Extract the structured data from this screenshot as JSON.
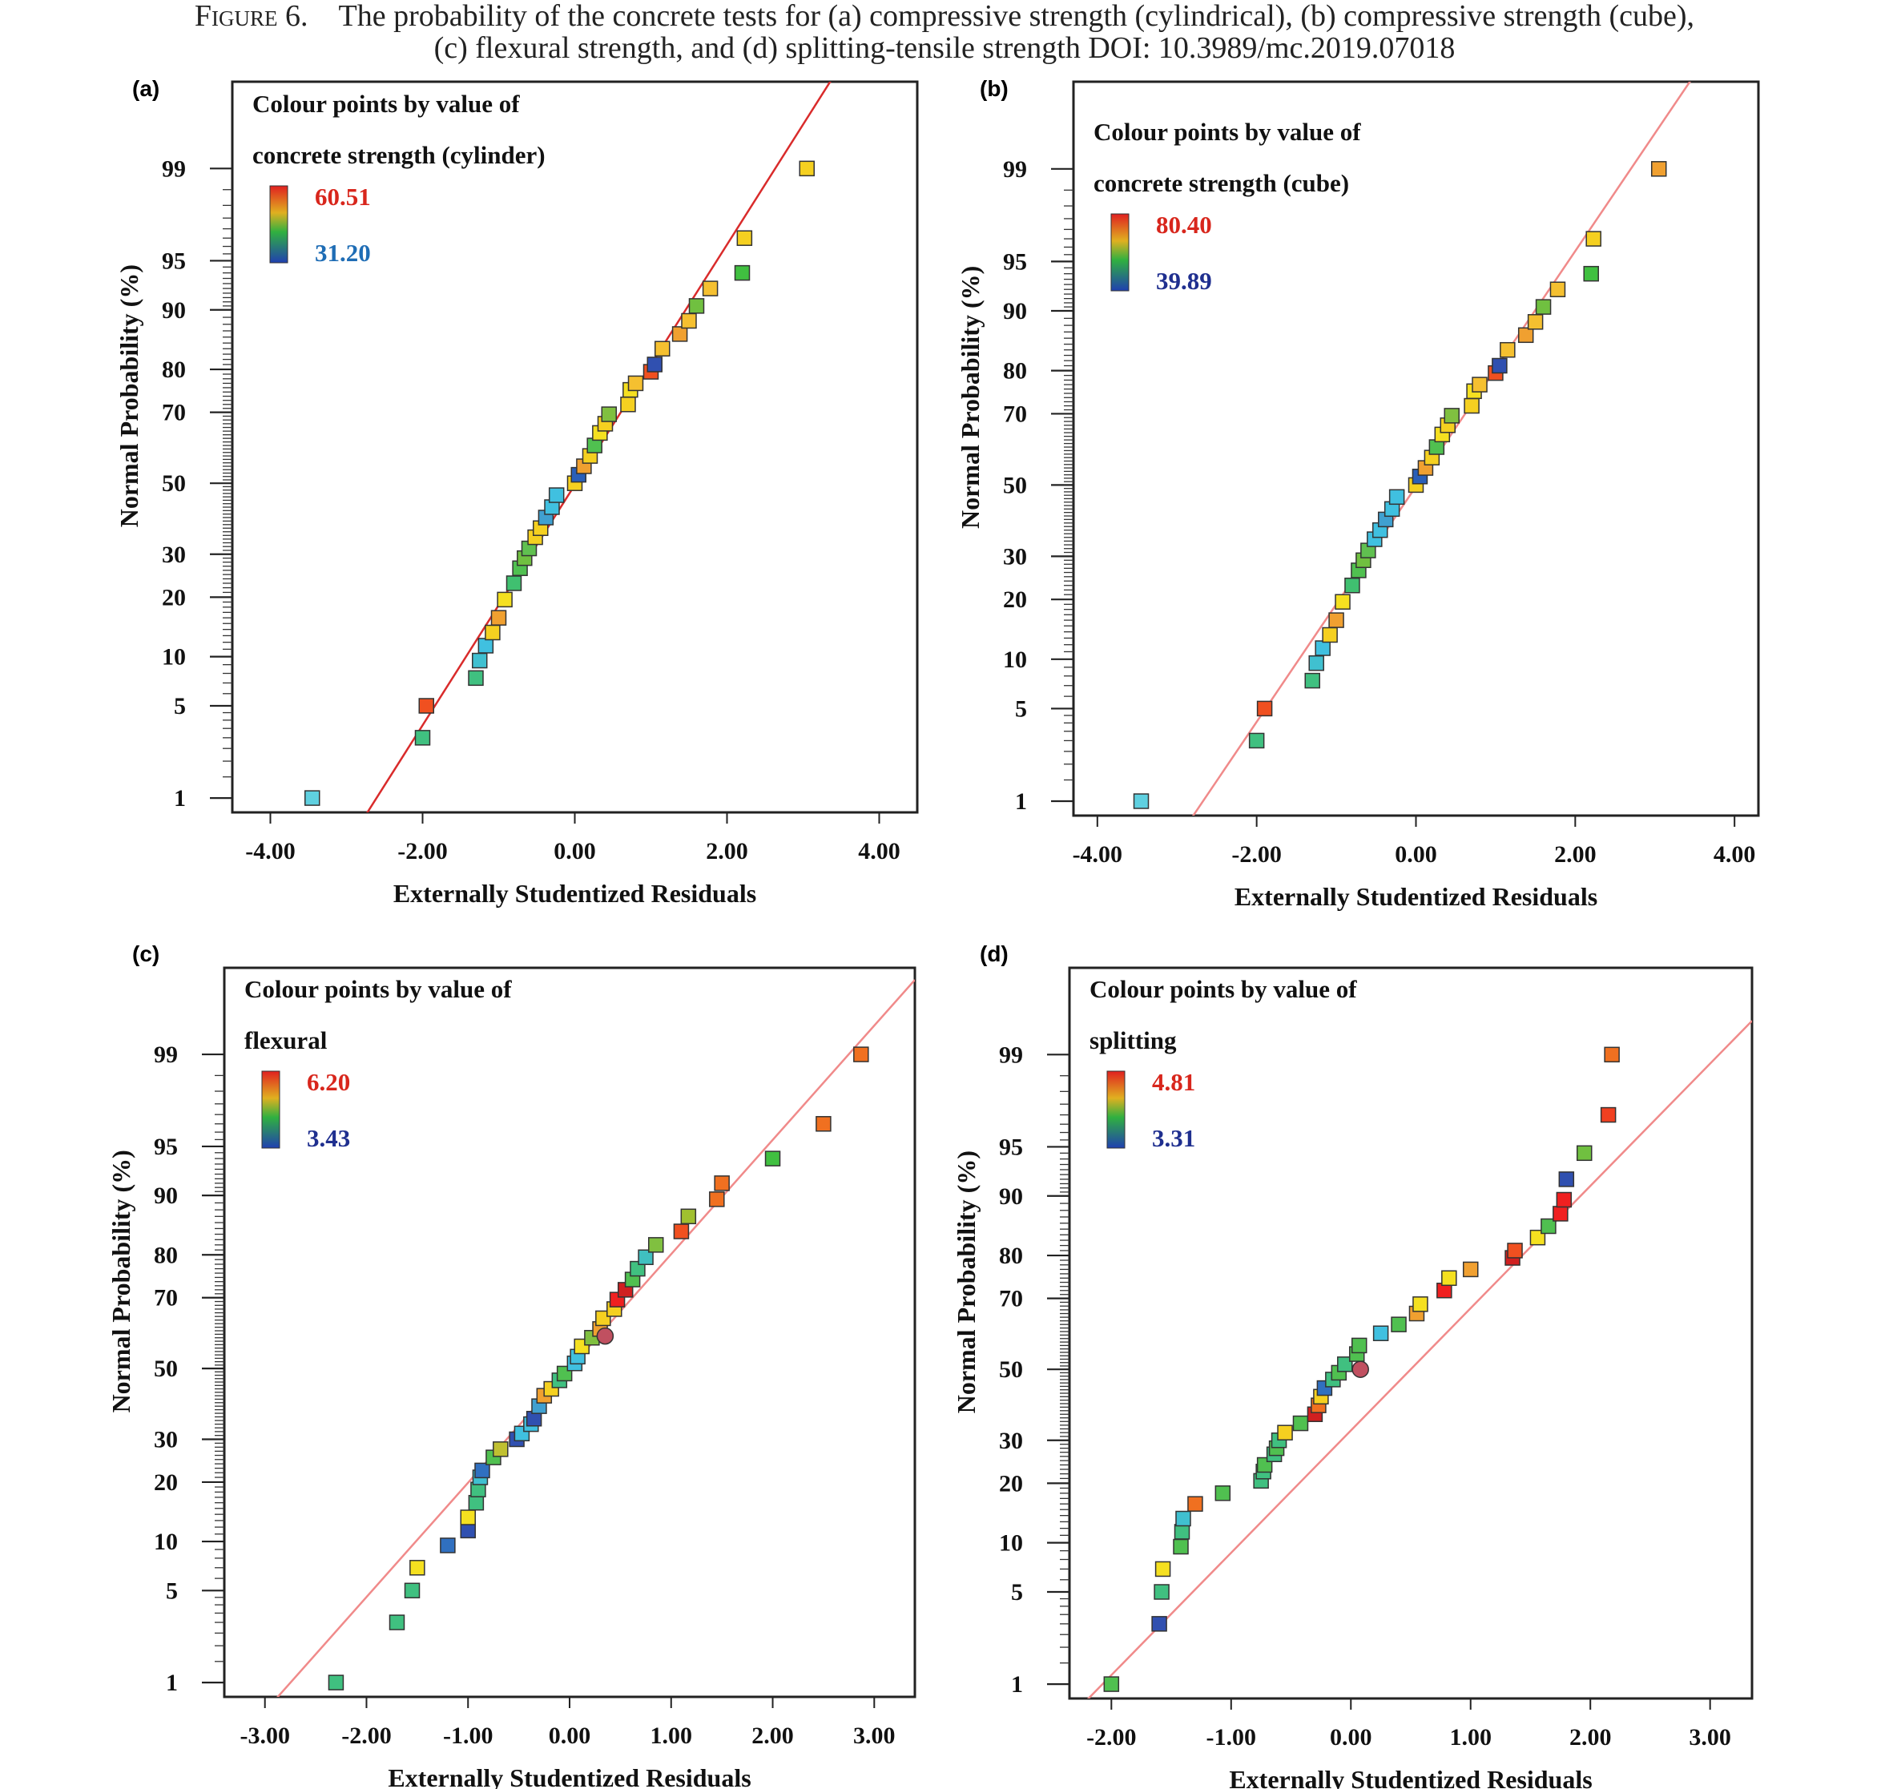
{
  "caption": {
    "figure_label": "Figure 6.",
    "line1": "The probability of the concrete tests for (a) compressive strength (cylindrical), (b) compressive strength (cube),",
    "line2": "(c) flexural strength, and (d) splitting-tensile strength DOI: 10.3989/mc.2019.07018"
  },
  "colors": {
    "frame": "#222222",
    "fit_line_a": "#d92b2b",
    "fit_line_other": "#f08a8a",
    "point_stroke": "#333333",
    "legend_high": "#d8261c",
    "legend_low_a": "#1f6db5",
    "legend_low_other": "#1f2f8f"
  },
  "chart_data": [
    {
      "panel": "(a)",
      "type": "scatter",
      "xlabel": "Externally Studentized Residuals",
      "ylabel": "Normal Probability (%)",
      "legend_title": [
        "Colour points by value of",
        "concrete strength (cylinder)"
      ],
      "legend_high": "60.51",
      "legend_low": "31.20",
      "xlim": [
        -4.5,
        4.5
      ],
      "x_ticks": [
        "-4.00",
        "-2.00",
        "0.00",
        "2.00",
        "4.00"
      ],
      "x_tick_values": [
        -4,
        -2,
        0,
        2,
        4
      ],
      "y_ticks": [
        1,
        5,
        10,
        20,
        30,
        50,
        70,
        80,
        90,
        95,
        99
      ],
      "fit_line": [
        [
          -3.85,
          0.03
        ],
        [
          4.0,
          99.98
        ]
      ],
      "points": [
        [
          -3.45,
          1.0,
          "#5fd0e0"
        ],
        [
          -2.0,
          3.0,
          "#40c080"
        ],
        [
          -1.95,
          5.0,
          "#f05020"
        ],
        [
          -1.3,
          7.5,
          "#40c080"
        ],
        [
          -1.25,
          9.5,
          "#40c0d0"
        ],
        [
          -1.17,
          11.5,
          "#40c0e0"
        ],
        [
          -1.08,
          13.5,
          "#f5d020"
        ],
        [
          -1.0,
          16.0,
          "#f0a030"
        ],
        [
          -0.92,
          19.5,
          "#f5e020"
        ],
        [
          -0.8,
          23.0,
          "#40c070"
        ],
        [
          -0.72,
          26.5,
          "#50c050"
        ],
        [
          -0.66,
          29.0,
          "#70c040"
        ],
        [
          -0.6,
          31.5,
          "#60c050"
        ],
        [
          -0.52,
          34.5,
          "#f5d020"
        ],
        [
          -0.45,
          37.0,
          "#f5d020"
        ],
        [
          -0.38,
          40.0,
          "#40a0d0"
        ],
        [
          -0.3,
          43.0,
          "#40c0e0"
        ],
        [
          -0.24,
          46.5,
          "#40c0e0"
        ],
        [
          0.0,
          50.0,
          "#f5d020"
        ],
        [
          0.05,
          52.5,
          "#2a5fb8"
        ],
        [
          0.12,
          55.0,
          "#f0a030"
        ],
        [
          0.2,
          58.0,
          "#f5d020"
        ],
        [
          0.26,
          61.0,
          "#50c050"
        ],
        [
          0.33,
          64.5,
          "#f5e020"
        ],
        [
          0.4,
          67.0,
          "#f5d020"
        ],
        [
          0.45,
          69.5,
          "#80c040"
        ],
        [
          0.7,
          72.0,
          "#f5d020"
        ],
        [
          0.73,
          75.5,
          "#f5e020"
        ],
        [
          0.8,
          77.0,
          "#f5c030"
        ],
        [
          1.0,
          79.5,
          "#f05020"
        ],
        [
          1.05,
          81.0,
          "#3050b0"
        ],
        [
          1.15,
          84.0,
          "#f5c030"
        ],
        [
          1.38,
          86.5,
          "#f0a030"
        ],
        [
          1.5,
          88.5,
          "#f5c030"
        ],
        [
          1.6,
          90.5,
          "#70c040"
        ],
        [
          1.78,
          92.5,
          "#f5c030"
        ],
        [
          2.2,
          94.0,
          "#40c040"
        ],
        [
          2.23,
          96.5,
          "#f5d020"
        ],
        [
          3.05,
          99.0,
          "#f5d020"
        ]
      ]
    },
    {
      "panel": "(b)",
      "type": "scatter",
      "xlabel": "Externally Studentized Residuals",
      "ylabel": "Normal Probability (%)",
      "legend_title": [
        "Colour points by value of",
        "concrete strength (cube)"
      ],
      "legend_high": "80.40",
      "legend_low": "39.89",
      "xlim": [
        -4.3,
        4.3
      ],
      "x_ticks": [
        "-4.00",
        "-2.00",
        "0.00",
        "2.00",
        "4.00"
      ],
      "x_tick_values": [
        -4,
        -2,
        0,
        2,
        4
      ],
      "y_ticks": [
        1,
        5,
        10,
        20,
        30,
        50,
        70,
        80,
        90,
        95,
        99
      ],
      "fit_line": [
        [
          -3.95,
          0.03
        ],
        [
          4.1,
          99.98
        ]
      ],
      "points": [
        [
          -3.45,
          1.0,
          "#5fd0e0"
        ],
        [
          -2.0,
          3.0,
          "#40c080"
        ],
        [
          -1.9,
          5.0,
          "#f05020"
        ],
        [
          -1.3,
          7.5,
          "#40c080"
        ],
        [
          -1.25,
          9.5,
          "#40c0d0"
        ],
        [
          -1.17,
          11.5,
          "#40c0e0"
        ],
        [
          -1.08,
          13.5,
          "#f5d020"
        ],
        [
          -1.0,
          16.0,
          "#f0a030"
        ],
        [
          -0.92,
          19.5,
          "#f5e020"
        ],
        [
          -0.8,
          23.0,
          "#40c070"
        ],
        [
          -0.72,
          26.5,
          "#50c050"
        ],
        [
          -0.66,
          29.0,
          "#70c040"
        ],
        [
          -0.6,
          31.5,
          "#60c050"
        ],
        [
          -0.52,
          34.5,
          "#40c0e0"
        ],
        [
          -0.45,
          37.0,
          "#40c0e0"
        ],
        [
          -0.38,
          40.0,
          "#40a0d0"
        ],
        [
          -0.3,
          43.0,
          "#40c0e0"
        ],
        [
          -0.24,
          46.5,
          "#40c0e0"
        ],
        [
          0.0,
          50.0,
          "#f5d020"
        ],
        [
          0.05,
          52.5,
          "#2a5fb8"
        ],
        [
          0.12,
          55.0,
          "#f0a030"
        ],
        [
          0.2,
          58.0,
          "#f5d020"
        ],
        [
          0.26,
          61.0,
          "#50c050"
        ],
        [
          0.33,
          64.5,
          "#f5e020"
        ],
        [
          0.4,
          67.0,
          "#f5d020"
        ],
        [
          0.45,
          69.5,
          "#80c040"
        ],
        [
          0.7,
          72.0,
          "#f5d020"
        ],
        [
          0.73,
          75.5,
          "#f5e020"
        ],
        [
          0.8,
          77.0,
          "#f5c030"
        ],
        [
          1.0,
          79.5,
          "#f05020"
        ],
        [
          1.05,
          81.0,
          "#3050b0"
        ],
        [
          1.15,
          84.0,
          "#f5c030"
        ],
        [
          1.38,
          86.5,
          "#f0a030"
        ],
        [
          1.5,
          88.5,
          "#f5c030"
        ],
        [
          1.6,
          90.5,
          "#70c040"
        ],
        [
          1.78,
          92.5,
          "#f5c030"
        ],
        [
          2.2,
          94.0,
          "#40c040"
        ],
        [
          2.23,
          96.5,
          "#f5d020"
        ],
        [
          3.05,
          99.0,
          "#f0a030"
        ]
      ]
    },
    {
      "panel": "(c)",
      "type": "scatter",
      "xlabel": "Externally Studentized Residuals",
      "ylabel": "Normal Probability (%)",
      "legend_title": [
        "Colour points by value of",
        "flexural"
      ],
      "legend_high": "6.20",
      "legend_low": "3.43",
      "xlim": [
        -3.4,
        3.4
      ],
      "x_ticks": [
        "-3.00",
        "-2.00",
        "-1.00",
        "0.00",
        "1.00",
        "2.00",
        "3.00"
      ],
      "x_tick_values": [
        -3,
        -2,
        -1,
        0,
        1,
        2,
        3
      ],
      "y_ticks": [
        1,
        5,
        10,
        20,
        30,
        50,
        70,
        80,
        90,
        95,
        99
      ],
      "fit_line": [
        [
          -3.4,
          0.2
        ],
        [
          3.4,
          99.8
        ]
      ],
      "points": [
        [
          -2.3,
          1.0,
          "#40c080"
        ],
        [
          -1.7,
          3.0,
          "#40c080"
        ],
        [
          -1.55,
          5.0,
          "#40c080"
        ],
        [
          -1.5,
          7.0,
          "#f5e020"
        ],
        [
          -1.2,
          9.5,
          "#3070c0"
        ],
        [
          -1.0,
          11.5,
          "#3050b0"
        ],
        [
          -1.0,
          13.5,
          "#f5e020"
        ],
        [
          -0.92,
          16.0,
          "#40c080"
        ],
        [
          -0.9,
          18.5,
          "#40c080"
        ],
        [
          -0.88,
          21.0,
          "#40c0d0"
        ],
        [
          -0.86,
          22.5,
          "#3070c0"
        ],
        [
          -0.75,
          25.5,
          "#50c050"
        ],
        [
          -0.68,
          27.5,
          "#c0c030"
        ],
        [
          -0.52,
          30.0,
          "#3050b0"
        ],
        [
          -0.47,
          31.5,
          "#40c0e0"
        ],
        [
          -0.38,
          34.0,
          "#40c0e0"
        ],
        [
          -0.35,
          35.5,
          "#3050b0"
        ],
        [
          -0.3,
          39.0,
          "#40a0d0"
        ],
        [
          -0.25,
          42.0,
          "#f0a030"
        ],
        [
          -0.18,
          44.0,
          "#f5d020"
        ],
        [
          -0.1,
          46.5,
          "#40c080"
        ],
        [
          -0.05,
          48.5,
          "#50c050"
        ],
        [
          0.05,
          51.5,
          "#40c0e0"
        ],
        [
          0.08,
          53.5,
          "#40c0e0"
        ],
        [
          0.12,
          56.5,
          "#f5e020"
        ],
        [
          0.22,
          59.0,
          "#80c040"
        ],
        [
          0.3,
          61.5,
          "#f0a030"
        ],
        [
          0.35,
          59.5,
          "#c05060"
        ],
        [
          0.33,
          64.5,
          "#f5d020"
        ],
        [
          0.44,
          67.0,
          "#f5d020"
        ],
        [
          0.47,
          69.5,
          "#f02020"
        ],
        [
          0.55,
          72.0,
          "#d02020"
        ],
        [
          0.62,
          74.5,
          "#50c050"
        ],
        [
          0.67,
          77.0,
          "#40c080"
        ],
        [
          0.75,
          79.5,
          "#40c0c0"
        ],
        [
          0.85,
          82.0,
          "#80c040"
        ],
        [
          1.1,
          84.5,
          "#f05020"
        ],
        [
          1.17,
          87.0,
          "#a0c030"
        ],
        [
          1.45,
          89.5,
          "#f07020"
        ],
        [
          1.5,
          91.5,
          "#f07020"
        ],
        [
          2.0,
          94.0,
          "#40c040"
        ],
        [
          2.5,
          96.5,
          "#f07020"
        ],
        [
          2.87,
          99.0,
          "#f07020"
        ]
      ]
    },
    {
      "panel": "(d)",
      "type": "scatter",
      "xlabel": "Externally Studentized Residuals",
      "ylabel": "Normal Probability (%)",
      "legend_title": [
        "Colour points by value of",
        "splitting"
      ],
      "legend_high": "4.81",
      "legend_low": "3.31",
      "xlim": [
        -2.35,
        3.35
      ],
      "x_ticks": [
        "-2.00",
        "-1.00",
        "0.00",
        "1.00",
        "2.00",
        "3.00"
      ],
      "x_tick_values": [
        -2,
        -1,
        0,
        1,
        2,
        3
      ],
      "y_ticks": [
        1,
        5,
        10,
        20,
        30,
        50,
        70,
        80,
        90,
        95,
        99
      ],
      "fit_line": [
        [
          -2.35,
          0.5
        ],
        [
          3.35,
          99.5
        ]
      ],
      "points": [
        [
          -2.0,
          1.0,
          "#50c050"
        ],
        [
          -1.6,
          3.0,
          "#3050b0"
        ],
        [
          -1.58,
          5.0,
          "#40c080"
        ],
        [
          -1.57,
          7.0,
          "#f5e020"
        ],
        [
          -1.42,
          9.5,
          "#50c050"
        ],
        [
          -1.41,
          11.5,
          "#40c080"
        ],
        [
          -1.4,
          13.5,
          "#40c0d0"
        ],
        [
          -1.3,
          16.0,
          "#f07020"
        ],
        [
          -1.07,
          18.0,
          "#50c050"
        ],
        [
          -0.75,
          20.5,
          "#40c080"
        ],
        [
          -0.73,
          22.5,
          "#40c080"
        ],
        [
          -0.72,
          24.0,
          "#50c050"
        ],
        [
          -0.64,
          26.5,
          "#40c080"
        ],
        [
          -0.62,
          28.0,
          "#50c050"
        ],
        [
          -0.6,
          30.0,
          "#40c080"
        ],
        [
          -0.55,
          32.0,
          "#f5d020"
        ],
        [
          -0.42,
          34.5,
          "#50c050"
        ],
        [
          -0.3,
          37.0,
          "#d02020"
        ],
        [
          -0.27,
          39.5,
          "#f07020"
        ],
        [
          -0.25,
          42.0,
          "#f5d020"
        ],
        [
          -0.22,
          44.5,
          "#3070c0"
        ],
        [
          -0.15,
          47.0,
          "#40c080"
        ],
        [
          -0.1,
          49.0,
          "#50c050"
        ],
        [
          -0.05,
          51.5,
          "#40c080"
        ],
        [
          0.05,
          54.5,
          "#50c050"
        ],
        [
          0.07,
          57.0,
          "#50c050"
        ],
        [
          0.08,
          50.0,
          "#c05060"
        ],
        [
          0.25,
          60.5,
          "#40c0e0"
        ],
        [
          0.4,
          63.0,
          "#50c050"
        ],
        [
          0.55,
          66.0,
          "#f0a030"
        ],
        [
          0.58,
          68.5,
          "#f5e020"
        ],
        [
          0.78,
          72.0,
          "#f02020"
        ],
        [
          0.82,
          75.0,
          "#f5e020"
        ],
        [
          1.0,
          77.0,
          "#f0a030"
        ],
        [
          1.35,
          79.5,
          "#d02020"
        ],
        [
          1.37,
          81.0,
          "#f05020"
        ],
        [
          1.56,
          83.5,
          "#f5e020"
        ],
        [
          1.65,
          85.5,
          "#50c050"
        ],
        [
          1.75,
          87.5,
          "#f02020"
        ],
        [
          1.78,
          89.5,
          "#f02020"
        ],
        [
          1.8,
          92.0,
          "#3050b0"
        ],
        [
          1.95,
          94.5,
          "#70c040"
        ],
        [
          2.15,
          97.0,
          "#f04020"
        ],
        [
          2.18,
          99.0,
          "#f07020"
        ]
      ]
    }
  ],
  "panel_labels": [
    "(a)",
    "(b)",
    "(c)",
    "(d)"
  ]
}
